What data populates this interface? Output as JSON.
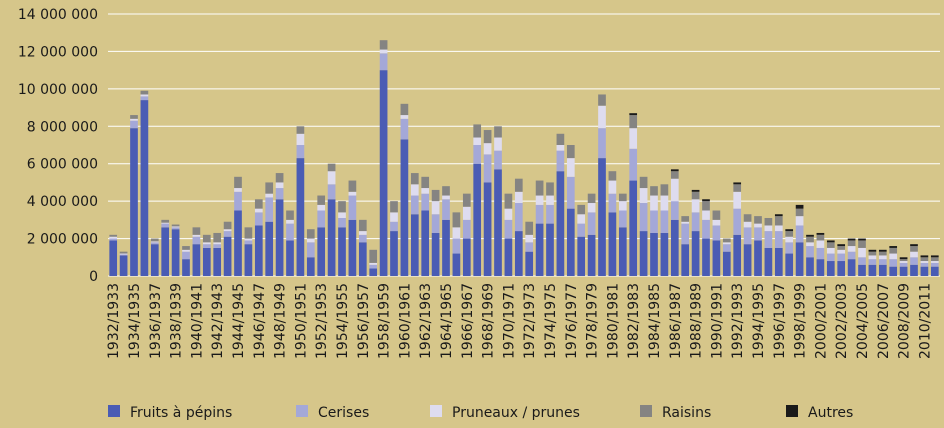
{
  "chart_data": {
    "type": "stacked_bar",
    "categories": [
      "1932/1933",
      null,
      "1934/1935",
      null,
      "1936/1937",
      null,
      "1938/1939",
      null,
      "1940/1941",
      null,
      "1942/1943",
      null,
      "1944/1945",
      null,
      "1946/1947",
      null,
      "1948/1949",
      null,
      "1950/1951",
      null,
      "1952/1953",
      null,
      "1954/1955",
      null,
      "1956/1957",
      null,
      "1958/1959",
      null,
      "1960/1961",
      null,
      "1962/1963",
      null,
      "1964/1965",
      null,
      "1966/1967",
      null,
      "1968/1969",
      null,
      "1970/1971",
      null,
      "1972/1973",
      null,
      "1974/1975",
      null,
      "1976/1977",
      null,
      "1978/1979",
      null,
      "1980/1981",
      null,
      "1982/1983",
      null,
      "1984/1985",
      null,
      "1986/1987",
      null,
      "1988/1989",
      null,
      "1990/1991",
      null,
      "1992/1993",
      null,
      "1994/1995",
      null,
      "1996/1997",
      null,
      "1998/1999",
      null,
      "2000/2001",
      null,
      "2002/2003",
      null,
      "2004/2005",
      null,
      "2006/2007",
      null,
      "2008/2009",
      null,
      "2010/2011",
      null
    ],
    "series": [
      {
        "name": "Fruits à pépins",
        "color": "#4a5cb4",
        "values": [
          1900000,
          1100000,
          7900000,
          9400000,
          1700000,
          2600000,
          2500000,
          900000,
          1700000,
          1500000,
          1500000,
          2100000,
          3500000,
          1700000,
          2700000,
          2900000,
          4100000,
          1900000,
          6300000,
          1000000,
          2600000,
          4100000,
          2600000,
          3000000,
          1800000,
          400000,
          11000000,
          2400000,
          7300000,
          3300000,
          3500000,
          2300000,
          3000000,
          1200000,
          2000000,
          6000000,
          5000000,
          5700000,
          2000000,
          2400000,
          1300000,
          2800000,
          2800000,
          5600000,
          3600000,
          2100000,
          2200000,
          6300000,
          3400000,
          2600000,
          5100000,
          2400000,
          2300000,
          2300000,
          3000000,
          1700000,
          2400000,
          2000000,
          1900000,
          1300000,
          2200000,
          1700000,
          1900000,
          1500000,
          1500000,
          1200000,
          1800000,
          1000000,
          900000,
          800000,
          800000,
          900000,
          600000,
          600000,
          600000,
          500000,
          500000,
          600000,
          500000,
          500000
        ]
      },
      {
        "name": "Cerises",
        "color": "#a4a8d8",
        "values": [
          100000,
          50000,
          400000,
          200000,
          100000,
          200000,
          100000,
          400000,
          400000,
          200000,
          200000,
          300000,
          1000000,
          200000,
          700000,
          1300000,
          600000,
          900000,
          700000,
          800000,
          900000,
          800000,
          500000,
          1300000,
          400000,
          200000,
          900000,
          500000,
          1100000,
          1000000,
          900000,
          1000000,
          1100000,
          800000,
          1000000,
          1000000,
          1500000,
          1000000,
          1000000,
          1500000,
          500000,
          1000000,
          1000000,
          1100000,
          1700000,
          700000,
          1200000,
          1600000,
          1000000,
          900000,
          1700000,
          1500000,
          1200000,
          1200000,
          1000000,
          1100000,
          1000000,
          1000000,
          800000,
          400000,
          1400000,
          900000,
          700000,
          900000,
          900000,
          600000,
          900000,
          600000,
          600000,
          400000,
          400000,
          400000,
          400000,
          300000,
          300000,
          400000,
          200000,
          400000,
          200000,
          200000
        ]
      },
      {
        "name": "Pruneaux / prunes",
        "color": "#dedcef",
        "values": [
          100000,
          50000,
          100000,
          100000,
          50000,
          50000,
          50000,
          100000,
          100000,
          100000,
          100000,
          100000,
          200000,
          100000,
          200000,
          200000,
          300000,
          200000,
          600000,
          200000,
          300000,
          700000,
          300000,
          200000,
          200000,
          100000,
          200000,
          500000,
          200000,
          600000,
          300000,
          700000,
          200000,
          600000,
          700000,
          400000,
          600000,
          700000,
          600000,
          600000,
          400000,
          500000,
          500000,
          300000,
          1000000,
          500000,
          500000,
          1200000,
          700000,
          500000,
          1100000,
          800000,
          800000,
          800000,
          1200000,
          100000,
          700000,
          500000,
          300000,
          100000,
          900000,
          300000,
          200000,
          300000,
          300000,
          300000,
          500000,
          200000,
          400000,
          300000,
          200000,
          300000,
          500000,
          200000,
          200000,
          300000,
          100000,
          300000,
          100000,
          100000
        ]
      },
      {
        "name": "Raisins",
        "color": "#858482",
        "values": [
          100000,
          100000,
          200000,
          200000,
          150000,
          150000,
          100000,
          200000,
          400000,
          400000,
          500000,
          400000,
          600000,
          600000,
          500000,
          600000,
          500000,
          500000,
          400000,
          500000,
          500000,
          400000,
          600000,
          600000,
          600000,
          700000,
          500000,
          600000,
          600000,
          600000,
          600000,
          600000,
          500000,
          800000,
          700000,
          700000,
          700000,
          600000,
          800000,
          700000,
          700000,
          800000,
          700000,
          600000,
          700000,
          500000,
          500000,
          600000,
          500000,
          400000,
          700000,
          600000,
          500000,
          600000,
          400000,
          300000,
          400000,
          500000,
          500000,
          200000,
          400000,
          400000,
          400000,
          400000,
          500000,
          300000,
          400000,
          300000,
          300000,
          300000,
          200000,
          300000,
          400000,
          200000,
          200000,
          300000,
          100000,
          300000,
          200000,
          200000
        ]
      },
      {
        "name": "Autres",
        "color": "#1a1a1a",
        "values": [
          0,
          0,
          0,
          0,
          0,
          0,
          0,
          0,
          0,
          0,
          0,
          0,
          0,
          0,
          0,
          0,
          0,
          0,
          0,
          0,
          0,
          0,
          0,
          0,
          0,
          0,
          0,
          0,
          0,
          0,
          0,
          0,
          0,
          0,
          0,
          0,
          0,
          0,
          0,
          0,
          0,
          0,
          0,
          0,
          0,
          0,
          0,
          0,
          0,
          0,
          100000,
          0,
          0,
          0,
          100000,
          0,
          100000,
          100000,
          0,
          0,
          100000,
          0,
          0,
          0,
          100000,
          100000,
          200000,
          100000,
          100000,
          100000,
          100000,
          100000,
          100000,
          100000,
          100000,
          100000,
          100000,
          100000,
          100000,
          100000
        ]
      }
    ],
    "ylim": [
      0,
      14000000
    ],
    "yticks": [
      0,
      {
        "value": 2000000,
        "label": "2 000 000"
      },
      {
        "value": 4000000,
        "label": "4 000 000"
      },
      {
        "value": 6000000,
        "label": "6 000 000"
      },
      {
        "value": 8000000,
        "label": "8 000 000"
      },
      {
        "value": 10000000,
        "label": "10 000 000"
      },
      {
        "value": 12000000,
        "label": "12 000 000"
      },
      {
        "value": 14000000,
        "label": "14 000 000"
      }
    ],
    "grid": true,
    "legend": "bottom"
  }
}
